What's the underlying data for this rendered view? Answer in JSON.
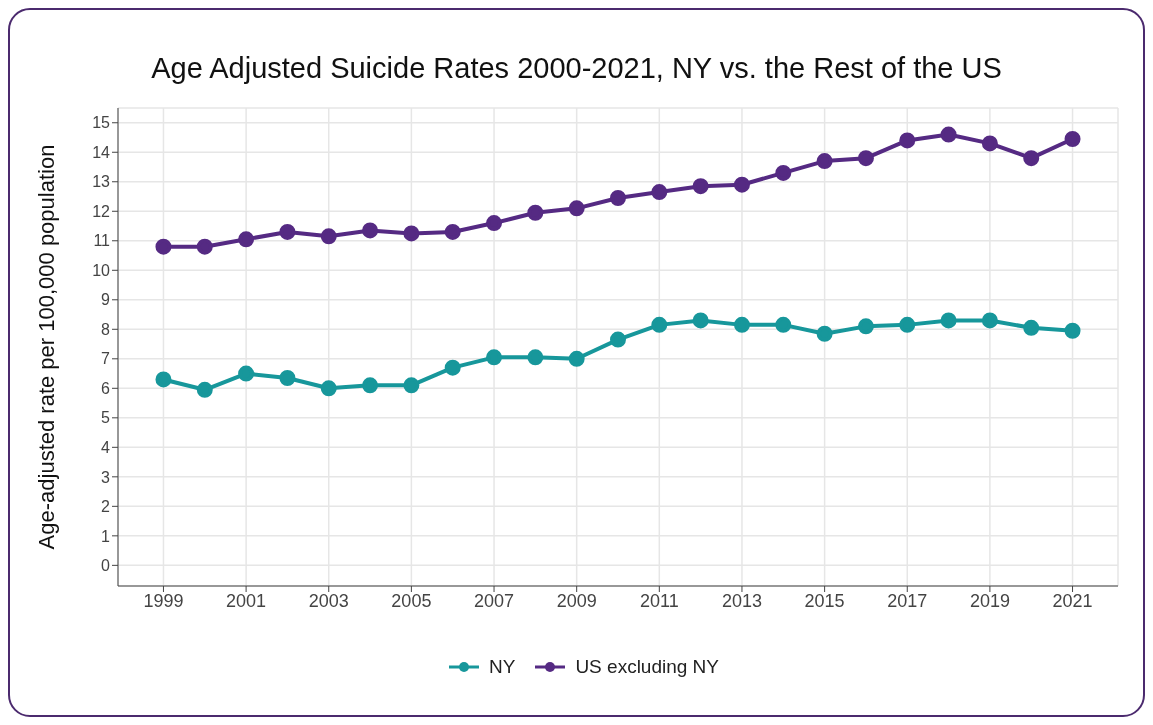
{
  "chart_data": {
    "type": "line",
    "title": "Age Adjusted Suicide Rates 2000-2021, NY vs. the Rest of the US",
    "ylabel": "Age-adjusted rate per 100,000 population",
    "x": [
      1999,
      2000,
      2001,
      2002,
      2003,
      2004,
      2005,
      2006,
      2007,
      2008,
      2009,
      2010,
      2011,
      2012,
      2013,
      2014,
      2015,
      2016,
      2017,
      2018,
      2019,
      2020,
      2021
    ],
    "series": [
      {
        "name": "NY",
        "color": "#17979b",
        "values": [
          6.3,
          5.95,
          6.5,
          6.35,
          6.0,
          6.1,
          6.1,
          6.7,
          7.05,
          7.05,
          7.0,
          7.65,
          8.15,
          8.3,
          8.15,
          8.15,
          7.85,
          8.1,
          8.15,
          8.3,
          8.3,
          8.05,
          7.95
        ]
      },
      {
        "name": "US excluding NY",
        "color": "#552a83",
        "values": [
          10.8,
          10.8,
          11.05,
          11.3,
          11.15,
          11.35,
          11.25,
          11.3,
          11.6,
          11.95,
          12.1,
          12.45,
          12.65,
          12.85,
          12.9,
          13.3,
          13.7,
          13.8,
          14.4,
          14.6,
          14.3,
          13.8,
          14.45
        ]
      }
    ],
    "xlim": [
      1997.9,
      2022.1
    ],
    "xticks": [
      1999,
      2001,
      2003,
      2005,
      2007,
      2009,
      2011,
      2013,
      2015,
      2017,
      2019,
      2021
    ],
    "ylim": [
      -0.7,
      15.5
    ],
    "yticks": [
      0,
      1,
      2,
      3,
      4,
      5,
      6,
      7,
      8,
      9,
      10,
      11,
      12,
      13,
      14,
      15
    ],
    "grid": true,
    "legend": "bottom",
    "marker": "circle",
    "line_style": "solid"
  }
}
